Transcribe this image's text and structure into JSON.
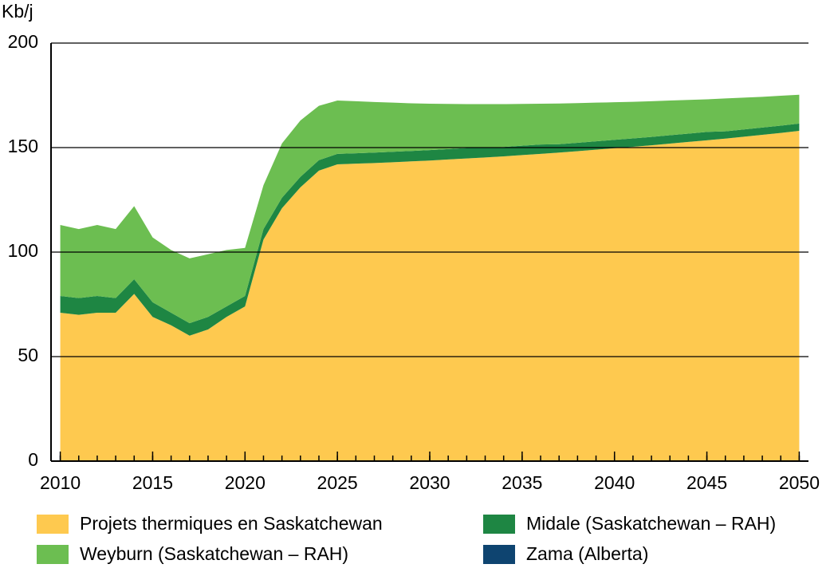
{
  "chart_data": {
    "type": "stacked_area",
    "y_label": "Kb/j",
    "x": [
      2010,
      2011,
      2012,
      2013,
      2014,
      2015,
      2016,
      2017,
      2018,
      2019,
      2020,
      2021,
      2022,
      2023,
      2024,
      2025,
      2026,
      2027,
      2028,
      2029,
      2030,
      2031,
      2032,
      2033,
      2034,
      2035,
      2036,
      2037,
      2038,
      2039,
      2040,
      2041,
      2042,
      2043,
      2044,
      2045,
      2046,
      2047,
      2048,
      2049,
      2050
    ],
    "xlim": [
      2009.5,
      2050.5
    ],
    "xticks": [
      2010,
      2015,
      2020,
      2025,
      2030,
      2035,
      2040,
      2045,
      2050
    ],
    "ylim": [
      0,
      200
    ],
    "yticks": [
      0,
      50,
      100,
      150,
      200
    ],
    "grid": true,
    "series": [
      {
        "name": "Projets thermiques en Saskatchewan",
        "color": "#fec94f",
        "values": [
          71,
          70,
          71,
          71,
          80,
          69,
          65,
          60,
          63,
          69,
          74,
          106,
          121,
          131,
          139,
          142,
          142.3,
          142.6,
          143,
          143.4,
          143.8,
          144.3,
          144.8,
          145.3,
          145.8,
          146.4,
          147,
          147.6,
          148.3,
          149,
          149.7,
          150.4,
          151.1,
          151.9,
          152.7,
          153.5,
          154.3,
          155.2,
          156.1,
          157,
          158
        ]
      },
      {
        "name": "Midale (Saskatchewan – RAH)",
        "color": "#1e8643",
        "values": [
          8,
          8,
          8,
          7,
          7,
          7,
          6,
          6,
          6,
          5,
          5,
          5,
          5,
          5,
          5,
          5,
          5,
          5,
          5,
          5,
          5,
          5,
          5,
          4.5,
          4.5,
          4.5,
          4.5,
          4,
          4,
          4,
          4,
          4,
          4,
          4,
          4,
          4,
          3.5,
          3.5,
          3.5,
          3.5,
          3.5
        ]
      },
      {
        "name": "Weyburn (Saskatchewan – RAH)",
        "color": "#6cbe51",
        "values": [
          34,
          33,
          34,
          33,
          35,
          31,
          30,
          31,
          30,
          27,
          23,
          21,
          26,
          27,
          26,
          25.5,
          24.9,
          24.2,
          23.5,
          22.8,
          22.2,
          21.6,
          21,
          21,
          20.5,
          20,
          19.5,
          19.5,
          19,
          18.5,
          18,
          17.5,
          17.1,
          16.6,
          16.1,
          15.6,
          15.7,
          15.2,
          14.7,
          14.3,
          13.8
        ]
      },
      {
        "name": "Zama (Alberta)",
        "color": "#0e4470",
        "values": [
          0,
          0,
          0,
          0,
          0,
          0,
          0,
          0,
          0,
          0,
          0,
          0,
          0,
          0,
          0,
          0,
          0,
          0,
          0,
          0,
          0,
          0,
          0,
          0,
          0,
          0,
          0,
          0,
          0,
          0,
          0,
          0,
          0,
          0,
          0,
          0,
          0,
          0,
          0,
          0,
          0
        ]
      }
    ]
  }
}
